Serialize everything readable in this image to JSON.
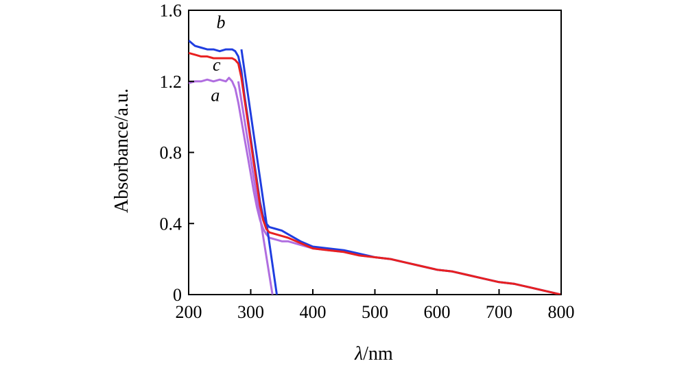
{
  "chart_data": {
    "type": "line",
    "xlabel_var": "λ",
    "xlabel_unit": "/nm",
    "ylabel": "Absorbance/a.u.",
    "xlim": [
      200,
      800
    ],
    "ylim": [
      0,
      1.6
    ],
    "xticks": [
      "200",
      "300",
      "400",
      "500",
      "600",
      "700",
      "800"
    ],
    "yticks": [
      "0",
      "0.4",
      "0.8",
      "1.2",
      "1.6"
    ],
    "grid": false,
    "series": [
      {
        "name": "a",
        "color": "#b06ee0",
        "points": [
          [
            200,
            1.19
          ],
          [
            210,
            1.2
          ],
          [
            220,
            1.2
          ],
          [
            230,
            1.21
          ],
          [
            240,
            1.2
          ],
          [
            250,
            1.21
          ],
          [
            260,
            1.2
          ],
          [
            265,
            1.22
          ],
          [
            270,
            1.2
          ],
          [
            275,
            1.16
          ],
          [
            280,
            1.08
          ],
          [
            285,
            0.98
          ],
          [
            290,
            0.88
          ],
          [
            295,
            0.78
          ],
          [
            300,
            0.68
          ],
          [
            305,
            0.58
          ],
          [
            310,
            0.49
          ],
          [
            315,
            0.42
          ],
          [
            320,
            0.37
          ],
          [
            325,
            0.34
          ],
          [
            330,
            0.32
          ],
          [
            340,
            0.31
          ],
          [
            350,
            0.3
          ],
          [
            360,
            0.3
          ],
          [
            380,
            0.28
          ],
          [
            400,
            0.26
          ],
          [
            425,
            0.25
          ],
          [
            450,
            0.24
          ],
          [
            475,
            0.22
          ],
          [
            500,
            0.21
          ],
          [
            525,
            0.2
          ],
          [
            550,
            0.18
          ],
          [
            575,
            0.16
          ],
          [
            600,
            0.14
          ],
          [
            625,
            0.13
          ],
          [
            650,
            0.11
          ],
          [
            675,
            0.09
          ],
          [
            700,
            0.07
          ],
          [
            725,
            0.06
          ],
          [
            750,
            0.04
          ],
          [
            775,
            0.02
          ],
          [
            800,
            0.0
          ]
        ],
        "tangent": [
          [
            280,
            1.2
          ],
          [
            335,
            0.0
          ]
        ]
      },
      {
        "name": "b",
        "color": "#1f3de0",
        "points": [
          [
            200,
            1.43
          ],
          [
            210,
            1.4
          ],
          [
            220,
            1.39
          ],
          [
            230,
            1.38
          ],
          [
            240,
            1.38
          ],
          [
            250,
            1.37
          ],
          [
            260,
            1.38
          ],
          [
            270,
            1.38
          ],
          [
            275,
            1.37
          ],
          [
            280,
            1.34
          ],
          [
            285,
            1.26
          ],
          [
            290,
            1.12
          ],
          [
            295,
            1.0
          ],
          [
            300,
            0.88
          ],
          [
            305,
            0.76
          ],
          [
            310,
            0.64
          ],
          [
            315,
            0.52
          ],
          [
            320,
            0.44
          ],
          [
            325,
            0.4
          ],
          [
            330,
            0.38
          ],
          [
            340,
            0.37
          ],
          [
            350,
            0.36
          ],
          [
            360,
            0.34
          ],
          [
            380,
            0.3
          ],
          [
            400,
            0.27
          ],
          [
            425,
            0.26
          ],
          [
            450,
            0.25
          ],
          [
            475,
            0.23
          ],
          [
            500,
            0.21
          ],
          [
            525,
            0.2
          ],
          [
            550,
            0.18
          ],
          [
            575,
            0.16
          ],
          [
            600,
            0.14
          ],
          [
            625,
            0.13
          ],
          [
            650,
            0.11
          ],
          [
            675,
            0.09
          ],
          [
            700,
            0.07
          ],
          [
            725,
            0.06
          ],
          [
            750,
            0.04
          ],
          [
            775,
            0.02
          ],
          [
            800,
            0.0
          ]
        ],
        "tangent": [
          [
            285,
            1.38
          ],
          [
            342,
            0.0
          ]
        ]
      },
      {
        "name": "c",
        "color": "#e82020",
        "points": [
          [
            200,
            1.36
          ],
          [
            210,
            1.35
          ],
          [
            220,
            1.34
          ],
          [
            230,
            1.34
          ],
          [
            240,
            1.33
          ],
          [
            250,
            1.33
          ],
          [
            260,
            1.33
          ],
          [
            270,
            1.33
          ],
          [
            275,
            1.32
          ],
          [
            280,
            1.3
          ],
          [
            285,
            1.22
          ],
          [
            290,
            1.1
          ],
          [
            295,
            0.98
          ],
          [
            300,
            0.86
          ],
          [
            305,
            0.74
          ],
          [
            310,
            0.62
          ],
          [
            315,
            0.5
          ],
          [
            320,
            0.42
          ],
          [
            325,
            0.37
          ],
          [
            330,
            0.35
          ],
          [
            340,
            0.34
          ],
          [
            350,
            0.33
          ],
          [
            360,
            0.32
          ],
          [
            380,
            0.29
          ],
          [
            400,
            0.26
          ],
          [
            425,
            0.25
          ],
          [
            450,
            0.24
          ],
          [
            475,
            0.22
          ],
          [
            500,
            0.21
          ],
          [
            525,
            0.2
          ],
          [
            550,
            0.18
          ],
          [
            575,
            0.16
          ],
          [
            600,
            0.14
          ],
          [
            625,
            0.13
          ],
          [
            650,
            0.11
          ],
          [
            675,
            0.09
          ],
          [
            700,
            0.07
          ],
          [
            725,
            0.06
          ],
          [
            750,
            0.04
          ],
          [
            775,
            0.02
          ],
          [
            800,
            0.0
          ]
        ]
      }
    ],
    "labels": [
      {
        "text": "b",
        "x": 252,
        "y": 1.5
      },
      {
        "text": "c",
        "x": 245,
        "y": 1.26
      },
      {
        "text": "a",
        "x": 243,
        "y": 1.09
      }
    ]
  }
}
